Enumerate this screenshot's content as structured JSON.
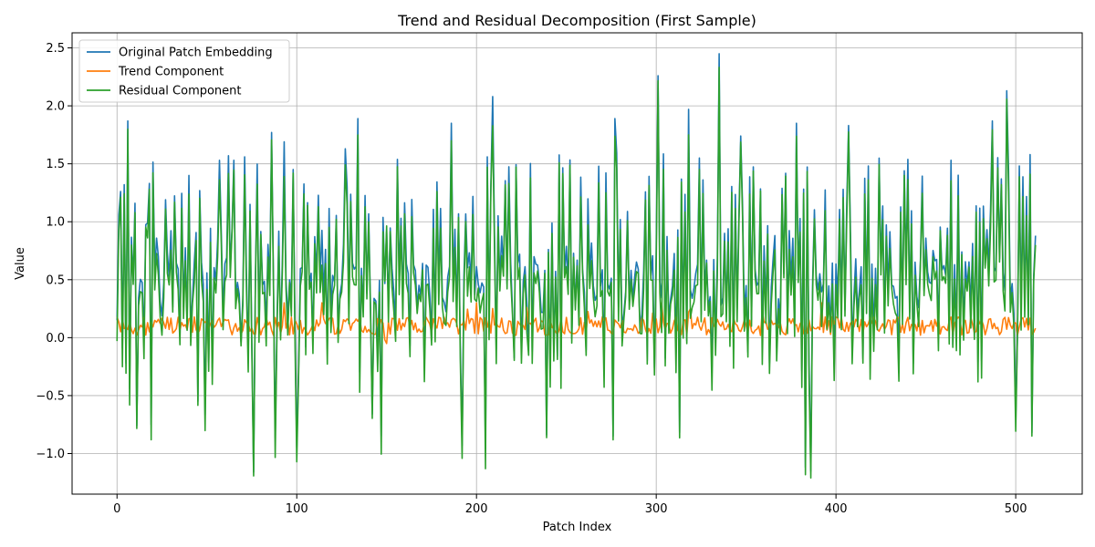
{
  "chart_data": {
    "type": "line",
    "title": "Trend and Residual Decomposition (First Sample)",
    "xlabel": "Patch Index",
    "ylabel": "Value",
    "xlim": [
      -25,
      537
    ],
    "ylim": [
      -1.35,
      2.63
    ],
    "xticks": [
      0,
      100,
      200,
      300,
      400,
      500
    ],
    "yticks": [
      -1.0,
      -0.5,
      0.0,
      0.5,
      1.0,
      1.5,
      2.0,
      2.5
    ],
    "grid": true,
    "legend_position": "upper-left",
    "n_points": 512,
    "series": [
      {
        "name": "Original Patch Embedding",
        "color": "#1f77b4"
      },
      {
        "name": "Trend Component",
        "color": "#ff7f0e"
      },
      {
        "name": "Residual Component",
        "color": "#2ca02c"
      }
    ],
    "anchor_points": [
      {
        "x": 0,
        "y": 0.15
      },
      {
        "x": 1,
        "y": 1.06
      },
      {
        "x": 4,
        "y": 1.32
      },
      {
        "x": 5,
        "y": -0.22
      },
      {
        "x": 6,
        "y": 1.87
      },
      {
        "x": 7,
        "y": -0.44
      },
      {
        "x": 10,
        "y": 1.16
      },
      {
        "x": 11,
        "y": -0.76
      },
      {
        "x": 17,
        "y": 0.99
      },
      {
        "x": 19,
        "y": -0.75
      },
      {
        "x": 27,
        "y": 1.19
      },
      {
        "x": 40,
        "y": 1.4
      },
      {
        "x": 45,
        "y": -0.55
      },
      {
        "x": 49,
        "y": -0.67
      },
      {
        "x": 57,
        "y": 1.53
      },
      {
        "x": 65,
        "y": 1.53
      },
      {
        "x": 71,
        "y": 1.56
      },
      {
        "x": 76,
        "y": -1.16
      },
      {
        "x": 86,
        "y": 1.77
      },
      {
        "x": 88,
        "y": -0.86
      },
      {
        "x": 93,
        "y": 1.69
      },
      {
        "x": 100,
        "y": -0.95
      },
      {
        "x": 127,
        "y": 1.63
      },
      {
        "x": 134,
        "y": 1.89
      },
      {
        "x": 142,
        "y": -0.66
      },
      {
        "x": 147,
        "y": -0.85
      },
      {
        "x": 186,
        "y": 1.85
      },
      {
        "x": 192,
        "y": -0.93
      },
      {
        "x": 205,
        "y": -0.96
      },
      {
        "x": 209,
        "y": 2.08
      },
      {
        "x": 239,
        "y": -0.84
      },
      {
        "x": 276,
        "y": -0.85
      },
      {
        "x": 277,
        "y": 1.89
      },
      {
        "x": 301,
        "y": 2.26
      },
      {
        "x": 313,
        "y": -0.82
      },
      {
        "x": 318,
        "y": 1.97
      },
      {
        "x": 335,
        "y": 2.45
      },
      {
        "x": 347,
        "y": 1.74
      },
      {
        "x": 383,
        "y": -1.12
      },
      {
        "x": 386,
        "y": -1.15
      },
      {
        "x": 378,
        "y": 1.85
      },
      {
        "x": 407,
        "y": 1.83
      },
      {
        "x": 487,
        "y": 1.87
      },
      {
        "x": 495,
        "y": 2.13
      },
      {
        "x": 500,
        "y": -0.68
      },
      {
        "x": 508,
        "y": 1.58
      },
      {
        "x": 509,
        "y": -0.82
      },
      {
        "x": 511,
        "y": 0.88
      }
    ],
    "trend_level": 0.1,
    "trend_range": [
      -0.15,
      0.3
    ]
  }
}
